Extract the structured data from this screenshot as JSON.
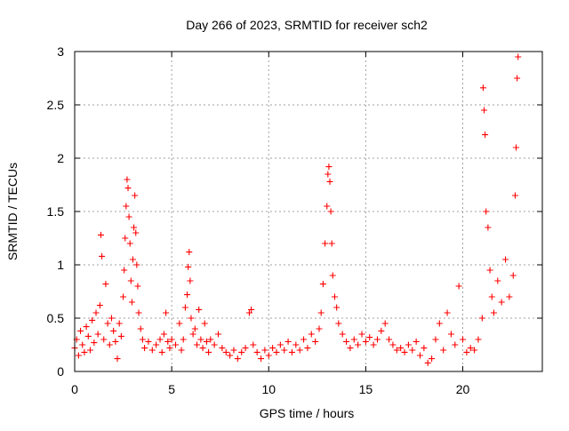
{
  "chart_data": {
    "type": "scatter",
    "title": "Day 266 of 2023, SRMTID for receiver sch2",
    "xlabel": "GPS time / hours",
    "ylabel": "SRMTID / TECUs",
    "xlim": [
      0,
      24.1
    ],
    "ylim": [
      0,
      3
    ],
    "xticks": [
      0,
      5,
      10,
      15,
      20
    ],
    "xtick_labels": [
      "0",
      "5",
      "10",
      "15",
      "20"
    ],
    "yticks": [
      0,
      0.5,
      1,
      1.5,
      2,
      2.5,
      3
    ],
    "ytick_labels": [
      "0",
      "0.5",
      "1",
      "1.5",
      "2",
      "2.5",
      "3"
    ],
    "grid": true,
    "marker": "plus",
    "series": [
      {
        "name": "sch2",
        "color": "#ff0000",
        "points": [
          [
            0.0,
            0.22
          ],
          [
            0.1,
            0.3
          ],
          [
            0.2,
            0.15
          ],
          [
            0.3,
            0.38
          ],
          [
            0.4,
            0.25
          ],
          [
            0.5,
            0.18
          ],
          [
            0.6,
            0.42
          ],
          [
            0.7,
            0.33
          ],
          [
            0.8,
            0.2
          ],
          [
            0.9,
            0.48
          ],
          [
            1.0,
            0.27
          ],
          [
            1.1,
            0.55
          ],
          [
            1.2,
            0.35
          ],
          [
            1.3,
            0.62
          ],
          [
            1.35,
            1.28
          ],
          [
            1.4,
            1.08
          ],
          [
            1.5,
            0.3
          ],
          [
            1.6,
            0.82
          ],
          [
            1.7,
            0.45
          ],
          [
            1.8,
            0.25
          ],
          [
            1.9,
            0.5
          ],
          [
            2.0,
            0.38
          ],
          [
            2.1,
            0.28
          ],
          [
            2.2,
            0.12
          ],
          [
            2.3,
            0.45
          ],
          [
            2.4,
            0.33
          ],
          [
            2.5,
            0.7
          ],
          [
            2.55,
            0.95
          ],
          [
            2.6,
            1.25
          ],
          [
            2.65,
            1.55
          ],
          [
            2.7,
            1.8
          ],
          [
            2.75,
            1.72
          ],
          [
            2.8,
            1.45
          ],
          [
            2.85,
            1.2
          ],
          [
            2.9,
            0.85
          ],
          [
            2.95,
            0.65
          ],
          [
            3.0,
            1.05
          ],
          [
            3.05,
            1.35
          ],
          [
            3.1,
            1.65
          ],
          [
            3.15,
            1.3
          ],
          [
            3.2,
            1.0
          ],
          [
            3.25,
            0.8
          ],
          [
            3.3,
            0.55
          ],
          [
            3.4,
            0.4
          ],
          [
            3.5,
            0.3
          ],
          [
            3.6,
            0.22
          ],
          [
            3.8,
            0.28
          ],
          [
            4.0,
            0.2
          ],
          [
            4.2,
            0.25
          ],
          [
            4.4,
            0.3
          ],
          [
            4.5,
            0.18
          ],
          [
            4.6,
            0.35
          ],
          [
            4.7,
            0.55
          ],
          [
            4.8,
            0.28
          ],
          [
            4.9,
            0.22
          ],
          [
            5.0,
            0.3
          ],
          [
            5.2,
            0.25
          ],
          [
            5.4,
            0.45
          ],
          [
            5.5,
            0.2
          ],
          [
            5.6,
            0.3
          ],
          [
            5.7,
            0.6
          ],
          [
            5.8,
            0.72
          ],
          [
            5.85,
            0.98
          ],
          [
            5.9,
            1.12
          ],
          [
            5.95,
            0.85
          ],
          [
            6.0,
            0.5
          ],
          [
            6.1,
            0.35
          ],
          [
            6.2,
            0.4
          ],
          [
            6.3,
            0.25
          ],
          [
            6.4,
            0.58
          ],
          [
            6.5,
            0.3
          ],
          [
            6.6,
            0.22
          ],
          [
            6.7,
            0.45
          ],
          [
            6.8,
            0.28
          ],
          [
            6.9,
            0.18
          ],
          [
            7.0,
            0.3
          ],
          [
            7.2,
            0.25
          ],
          [
            7.4,
            0.35
          ],
          [
            7.6,
            0.22
          ],
          [
            7.8,
            0.18
          ],
          [
            8.0,
            0.15
          ],
          [
            8.2,
            0.2
          ],
          [
            8.4,
            0.12
          ],
          [
            8.6,
            0.18
          ],
          [
            8.8,
            0.22
          ],
          [
            9.0,
            0.55
          ],
          [
            9.1,
            0.58
          ],
          [
            9.2,
            0.25
          ],
          [
            9.4,
            0.18
          ],
          [
            9.6,
            0.12
          ],
          [
            9.8,
            0.2
          ],
          [
            10.0,
            0.15
          ],
          [
            10.2,
            0.22
          ],
          [
            10.4,
            0.18
          ],
          [
            10.6,
            0.25
          ],
          [
            10.8,
            0.2
          ],
          [
            11.0,
            0.28
          ],
          [
            11.2,
            0.18
          ],
          [
            11.4,
            0.25
          ],
          [
            11.6,
            0.2
          ],
          [
            11.8,
            0.3
          ],
          [
            12.0,
            0.22
          ],
          [
            12.2,
            0.35
          ],
          [
            12.4,
            0.28
          ],
          [
            12.6,
            0.4
          ],
          [
            12.7,
            0.55
          ],
          [
            12.8,
            0.82
          ],
          [
            12.9,
            1.2
          ],
          [
            13.0,
            1.55
          ],
          [
            13.05,
            1.85
          ],
          [
            13.1,
            1.92
          ],
          [
            13.15,
            1.78
          ],
          [
            13.2,
            1.5
          ],
          [
            13.25,
            1.2
          ],
          [
            13.3,
            0.9
          ],
          [
            13.4,
            0.7
          ],
          [
            13.5,
            0.6
          ],
          [
            13.6,
            0.45
          ],
          [
            13.8,
            0.35
          ],
          [
            14.0,
            0.28
          ],
          [
            14.2,
            0.22
          ],
          [
            14.4,
            0.3
          ],
          [
            14.6,
            0.25
          ],
          [
            14.8,
            0.35
          ],
          [
            15.0,
            0.28
          ],
          [
            15.2,
            0.32
          ],
          [
            15.4,
            0.25
          ],
          [
            15.6,
            0.3
          ],
          [
            15.8,
            0.38
          ],
          [
            16.0,
            0.45
          ],
          [
            16.2,
            0.3
          ],
          [
            16.4,
            0.25
          ],
          [
            16.6,
            0.2
          ],
          [
            16.8,
            0.22
          ],
          [
            17.0,
            0.18
          ],
          [
            17.2,
            0.25
          ],
          [
            17.4,
            0.2
          ],
          [
            17.6,
            0.28
          ],
          [
            17.8,
            0.15
          ],
          [
            18.0,
            0.22
          ],
          [
            18.2,
            0.08
          ],
          [
            18.4,
            0.12
          ],
          [
            18.6,
            0.3
          ],
          [
            18.8,
            0.45
          ],
          [
            19.0,
            0.2
          ],
          [
            19.2,
            0.55
          ],
          [
            19.4,
            0.35
          ],
          [
            19.6,
            0.25
          ],
          [
            19.8,
            0.8
          ],
          [
            20.0,
            0.3
          ],
          [
            20.2,
            0.18
          ],
          [
            20.4,
            0.22
          ],
          [
            20.6,
            0.2
          ],
          [
            20.8,
            0.3
          ],
          [
            21.0,
            0.5
          ],
          [
            21.05,
            2.66
          ],
          [
            21.1,
            2.45
          ],
          [
            21.15,
            2.22
          ],
          [
            21.2,
            1.5
          ],
          [
            21.3,
            1.35
          ],
          [
            21.4,
            0.95
          ],
          [
            21.5,
            0.7
          ],
          [
            21.6,
            0.55
          ],
          [
            21.8,
            0.85
          ],
          [
            22.0,
            0.65
          ],
          [
            22.2,
            1.05
          ],
          [
            22.4,
            0.7
          ],
          [
            22.6,
            0.9
          ],
          [
            22.7,
            1.65
          ],
          [
            22.75,
            2.1
          ],
          [
            22.8,
            2.75
          ],
          [
            22.85,
            2.95
          ]
        ]
      }
    ]
  }
}
